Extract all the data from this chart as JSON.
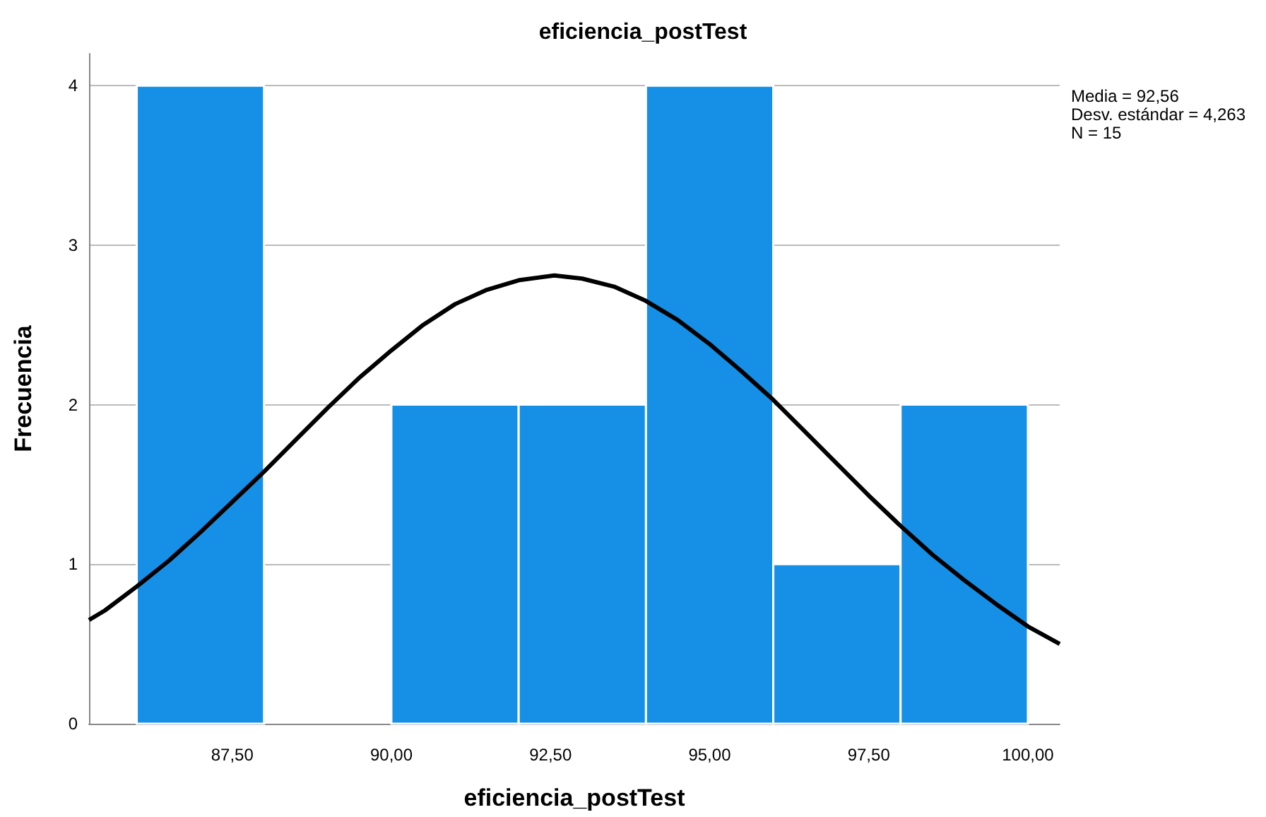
{
  "chart_data": {
    "type": "histogram",
    "title": "eficiencia_postTest",
    "xlabel": "eficiencia_postTest",
    "ylabel": "Frecuencia",
    "bins": [
      86,
      88,
      90,
      92,
      94,
      96,
      98,
      100
    ],
    "values": [
      4,
      0,
      2,
      2,
      4,
      1,
      2
    ],
    "color": "#1590e6",
    "series": [
      {
        "type": "line",
        "color": "#000000",
        "marker": "none",
        "x": [
          85.25,
          85.5,
          86,
          86.5,
          87,
          87.5,
          88,
          88.5,
          89,
          89.5,
          90,
          90.5,
          91,
          91.5,
          92,
          92.56,
          93,
          93.5,
          94,
          94.5,
          95,
          95.5,
          96,
          96.5,
          97,
          97.5,
          98,
          98.5,
          99,
          99.5,
          100,
          100.5
        ],
        "values": [
          0.65,
          0.71,
          0.86,
          1.02,
          1.2,
          1.39,
          1.58,
          1.78,
          1.98,
          2.17,
          2.34,
          2.5,
          2.63,
          2.72,
          2.78,
          2.81,
          2.79,
          2.74,
          2.65,
          2.53,
          2.38,
          2.21,
          2.03,
          1.83,
          1.63,
          1.43,
          1.24,
          1.06,
          0.9,
          0.75,
          0.61,
          0.5
        ]
      }
    ],
    "xlim": [
      85.25,
      100.5
    ],
    "xticks": [
      {
        "value": 87.5,
        "label": "87,50"
      },
      {
        "value": 90,
        "label": "90,00"
      },
      {
        "value": 92.5,
        "label": "92,50"
      },
      {
        "value": 95,
        "label": "95,00"
      },
      {
        "value": 97.5,
        "label": "97,50"
      },
      {
        "value": 100,
        "label": "100,00"
      }
    ],
    "ylim": [
      0,
      4.2
    ],
    "yticks": [
      0,
      1,
      2,
      3,
      4
    ],
    "grid": "y",
    "annotations": [
      "Media = 92,56",
      "Desv. estándar = 4,263",
      "N = 15"
    ]
  }
}
